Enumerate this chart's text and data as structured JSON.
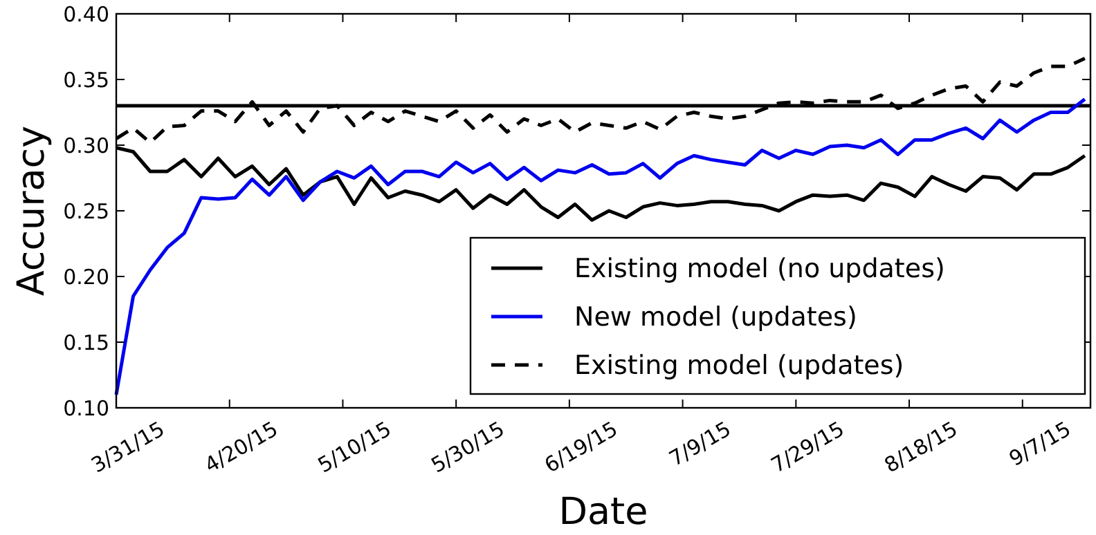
{
  "chart_data": {
    "type": "line",
    "xlabel": "Date",
    "ylabel": "Accuracy",
    "x": [
      "2015-03-31",
      "2015-04-03",
      "2015-04-06",
      "2015-04-09",
      "2015-04-12",
      "2015-04-15",
      "2015-04-18",
      "2015-04-21",
      "2015-04-24",
      "2015-04-27",
      "2015-04-30",
      "2015-05-03",
      "2015-05-06",
      "2015-05-09",
      "2015-05-12",
      "2015-05-15",
      "2015-05-18",
      "2015-05-21",
      "2015-05-24",
      "2015-05-27",
      "2015-05-30",
      "2015-06-02",
      "2015-06-05",
      "2015-06-08",
      "2015-06-11",
      "2015-06-14",
      "2015-06-17",
      "2015-06-20",
      "2015-06-23",
      "2015-06-26",
      "2015-06-29",
      "2015-07-02",
      "2015-07-05",
      "2015-07-08",
      "2015-07-11",
      "2015-07-14",
      "2015-07-17",
      "2015-07-20",
      "2015-07-23",
      "2015-07-26",
      "2015-07-29",
      "2015-08-01",
      "2015-08-04",
      "2015-08-07",
      "2015-08-10",
      "2015-08-13",
      "2015-08-16",
      "2015-08-19",
      "2015-08-22",
      "2015-08-25",
      "2015-08-28",
      "2015-08-31",
      "2015-09-03",
      "2015-09-06",
      "2015-09-09",
      "2015-09-12",
      "2015-09-15",
      "2015-09-18"
    ],
    "series": [
      {
        "name": "Existing model (no updates)",
        "color": "#000000",
        "line_style": "solid",
        "values": [
          0.298,
          0.295,
          0.28,
          0.28,
          0.289,
          0.276,
          0.29,
          0.276,
          0.284,
          0.27,
          0.282,
          0.262,
          0.272,
          0.276,
          0.255,
          0.275,
          0.26,
          0.265,
          0.262,
          0.257,
          0.266,
          0.252,
          0.262,
          0.255,
          0.266,
          0.253,
          0.245,
          0.255,
          0.243,
          0.25,
          0.245,
          0.253,
          0.256,
          0.254,
          0.255,
          0.257,
          0.257,
          0.255,
          0.254,
          0.25,
          0.257,
          0.262,
          0.261,
          0.262,
          0.258,
          0.271,
          0.268,
          0.261,
          0.276,
          0.27,
          0.265,
          0.276,
          0.275,
          0.266,
          0.278,
          0.278,
          0.283,
          0.292
        ]
      },
      {
        "name": "New model (updates)",
        "color": "#0000ee",
        "line_style": "solid",
        "values": [
          0.11,
          0.185,
          0.205,
          0.222,
          0.233,
          0.26,
          0.259,
          0.26,
          0.274,
          0.262,
          0.276,
          0.258,
          0.272,
          0.28,
          0.275,
          0.284,
          0.27,
          0.28,
          0.28,
          0.276,
          0.287,
          0.279,
          0.286,
          0.274,
          0.283,
          0.273,
          0.281,
          0.279,
          0.285,
          0.278,
          0.279,
          0.286,
          0.275,
          0.286,
          0.292,
          0.289,
          0.287,
          0.285,
          0.296,
          0.29,
          0.296,
          0.293,
          0.299,
          0.3,
          0.298,
          0.304,
          0.293,
          0.304,
          0.304,
          0.309,
          0.313,
          0.305,
          0.319,
          0.31,
          0.319,
          0.325,
          0.325,
          0.335
        ]
      },
      {
        "name": "Existing model (updates)",
        "color": "#000000",
        "line_style": "dashed",
        "values": [
          0.305,
          0.313,
          0.302,
          0.314,
          0.315,
          0.326,
          0.326,
          0.318,
          0.333,
          0.315,
          0.326,
          0.31,
          0.328,
          0.33,
          0.315,
          0.325,
          0.318,
          0.326,
          0.322,
          0.318,
          0.326,
          0.313,
          0.323,
          0.31,
          0.32,
          0.315,
          0.32,
          0.31,
          0.317,
          0.315,
          0.313,
          0.318,
          0.312,
          0.322,
          0.325,
          0.322,
          0.32,
          0.322,
          0.327,
          0.332,
          0.333,
          0.332,
          0.334,
          0.333,
          0.333,
          0.338,
          0.328,
          0.332,
          0.338,
          0.343,
          0.345,
          0.333,
          0.348,
          0.345,
          0.355,
          0.36,
          0.36,
          0.366
        ]
      }
    ],
    "xlim": [
      "2015-03-31",
      "2015-09-19"
    ],
    "xticks": [
      {
        "value": "2015-03-31",
        "label": "3/31/15"
      },
      {
        "value": "2015-04-20",
        "label": "4/20/15"
      },
      {
        "value": "2015-05-10",
        "label": "5/10/15"
      },
      {
        "value": "2015-05-30",
        "label": "5/30/15"
      },
      {
        "value": "2015-06-19",
        "label": "6/19/15"
      },
      {
        "value": "2015-07-09",
        "label": "7/9/15"
      },
      {
        "value": "2015-07-29",
        "label": "7/29/15"
      },
      {
        "value": "2015-08-18",
        "label": "8/18/15"
      },
      {
        "value": "2015-09-07",
        "label": "9/7/15"
      }
    ],
    "ylim": [
      0.1,
      0.4
    ],
    "yticks": [
      {
        "value": 0.1,
        "label": "0.10"
      },
      {
        "value": 0.15,
        "label": "0.15"
      },
      {
        "value": 0.2,
        "label": "0.20"
      },
      {
        "value": 0.25,
        "label": "0.25"
      },
      {
        "value": 0.3,
        "label": "0.30"
      },
      {
        "value": 0.35,
        "label": "0.35"
      },
      {
        "value": 0.4,
        "label": "0.40"
      }
    ],
    "ref_lines": [
      {
        "axis": "y",
        "value": 0.33,
        "color": "#000000",
        "line_style": "solid"
      }
    ],
    "legend": "bottom right",
    "grid": false
  }
}
